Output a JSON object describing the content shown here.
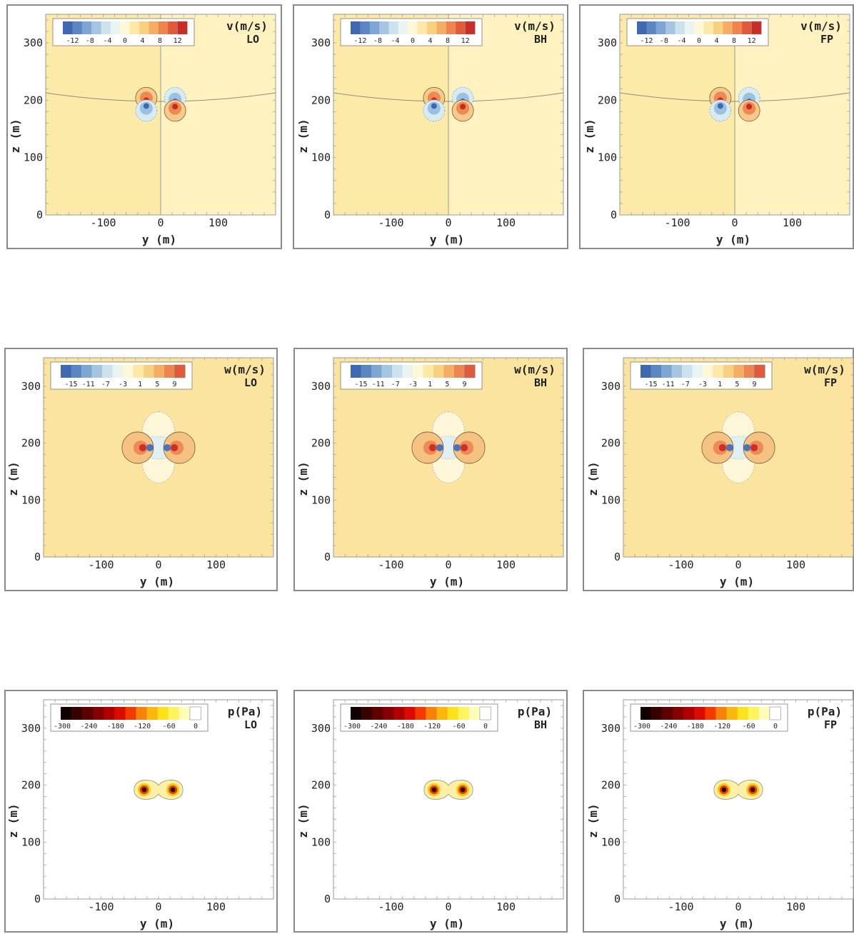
{
  "shared": {
    "y_ticks": [
      "-100",
      "0",
      "100"
    ],
    "z_ticks": [
      "0",
      "100",
      "200",
      "300"
    ],
    "xlabel": "y (m)",
    "ylabel": "z (m)"
  },
  "chart_data": [
    {
      "type": "heatmap",
      "field": "v",
      "var_label": "v(m/s)",
      "model": "LO",
      "xlabel": "y (m)",
      "ylabel": "z (m)",
      "xlim": [
        -200,
        200
      ],
      "ylim": [
        0,
        350
      ],
      "colorbar_ticks": [
        "-12",
        "-8",
        "-4",
        "0",
        "4",
        "8",
        "12"
      ],
      "colorbar_colors": [
        "#3f68b0",
        "#5a86c2",
        "#7ea5d3",
        "#a6c5e2",
        "#cde2ef",
        "#eaf4f3",
        "#fff8d8",
        "#fde8a6",
        "#f9cf82",
        "#f5ad65",
        "#ee8551",
        "#e25a3c",
        "#c92d28"
      ],
      "background": "#fbeaa8",
      "interface_z": 190
    },
    {
      "type": "heatmap",
      "field": "v",
      "var_label": "v(m/s)",
      "model": "BH",
      "xlabel": "y (m)",
      "ylabel": "z (m)",
      "xlim": [
        -200,
        200
      ],
      "ylim": [
        0,
        350
      ],
      "colorbar_ticks": [
        "-12",
        "-8",
        "-4",
        "0",
        "4",
        "8",
        "12"
      ],
      "colorbar_colors": [
        "#3f68b0",
        "#5a86c2",
        "#7ea5d3",
        "#a6c5e2",
        "#cde2ef",
        "#eaf4f3",
        "#fff8d8",
        "#fde8a6",
        "#f9cf82",
        "#f5ad65",
        "#ee8551",
        "#e25a3c",
        "#c92d28"
      ],
      "background": "#fbeaa8",
      "interface_z": 190
    },
    {
      "type": "heatmap",
      "field": "v",
      "var_label": "v(m/s)",
      "model": "FP",
      "xlabel": "y (m)",
      "ylabel": "z (m)",
      "xlim": [
        -200,
        200
      ],
      "ylim": [
        0,
        350
      ],
      "colorbar_ticks": [
        "-12",
        "-8",
        "-4",
        "0",
        "4",
        "8",
        "12"
      ],
      "colorbar_colors": [
        "#3f68b0",
        "#5a86c2",
        "#7ea5d3",
        "#a6c5e2",
        "#cde2ef",
        "#eaf4f3",
        "#fff8d8",
        "#fde8a6",
        "#f9cf82",
        "#f5ad65",
        "#ee8551",
        "#e25a3c",
        "#c92d28"
      ],
      "background": "#fbeaa8",
      "interface_z": 190
    },
    {
      "type": "heatmap",
      "field": "w",
      "var_label": "w(m/s)",
      "model": "LO",
      "xlabel": "y (m)",
      "ylabel": "z (m)",
      "xlim": [
        -200,
        200
      ],
      "ylim": [
        0,
        350
      ],
      "colorbar_ticks": [
        "-15",
        "-11",
        "-7",
        "-3",
        "1",
        "5",
        "9"
      ],
      "colorbar_colors": [
        "#3f68b0",
        "#5a86c2",
        "#7ea5d3",
        "#a6c5e2",
        "#cde2ef",
        "#eaf4f3",
        "#fff8d8",
        "#fde8a6",
        "#f9cf82",
        "#f5ad65",
        "#ee8551",
        "#e25a3c"
      ],
      "background": "#fbe4a0"
    },
    {
      "type": "heatmap",
      "field": "w",
      "var_label": "w(m/s)",
      "model": "BH",
      "xlabel": "y (m)",
      "ylabel": "z (m)",
      "xlim": [
        -200,
        200
      ],
      "ylim": [
        0,
        350
      ],
      "colorbar_ticks": [
        "-15",
        "-11",
        "-7",
        "-3",
        "1",
        "5",
        "9"
      ],
      "colorbar_colors": [
        "#3f68b0",
        "#5a86c2",
        "#7ea5d3",
        "#a6c5e2",
        "#cde2ef",
        "#eaf4f3",
        "#fff8d8",
        "#fde8a6",
        "#f9cf82",
        "#f5ad65",
        "#ee8551",
        "#e25a3c"
      ],
      "background": "#fbe4a0"
    },
    {
      "type": "heatmap",
      "field": "w",
      "var_label": "w(m/s)",
      "model": "FP",
      "xlabel": "y (m)",
      "ylabel": "z (m)",
      "xlim": [
        -200,
        200
      ],
      "ylim": [
        0,
        350
      ],
      "colorbar_ticks": [
        "-15",
        "-11",
        "-7",
        "-3",
        "1",
        "5",
        "9"
      ],
      "colorbar_colors": [
        "#3f68b0",
        "#5a86c2",
        "#7ea5d3",
        "#a6c5e2",
        "#cde2ef",
        "#eaf4f3",
        "#fff8d8",
        "#fde8a6",
        "#f9cf82",
        "#f5ad65",
        "#ee8551",
        "#e25a3c"
      ],
      "background": "#fbe4a0"
    },
    {
      "type": "heatmap",
      "field": "p",
      "var_label": "p(Pa)",
      "model": "LO",
      "xlabel": "y (m)",
      "ylabel": "z (m)",
      "xlim": [
        -200,
        200
      ],
      "ylim": [
        0,
        350
      ],
      "colorbar_ticks": [
        "-300",
        "-240",
        "-180",
        "-120",
        "-60",
        "0"
      ],
      "colorbar_colors": [
        "#120000",
        "#3a0000",
        "#5e0000",
        "#850000",
        "#b00000",
        "#dc0a00",
        "#f53a00",
        "#f7820a",
        "#fbb80c",
        "#fde21a",
        "#fff45e",
        "#fffbb8",
        "#ffffff"
      ],
      "background": "#ffffff"
    },
    {
      "type": "heatmap",
      "field": "p",
      "var_label": "p(Pa)",
      "model": "BH",
      "xlabel": "y (m)",
      "ylabel": "z (m)",
      "xlim": [
        -200,
        200
      ],
      "ylim": [
        0,
        350
      ],
      "colorbar_ticks": [
        "-300",
        "-240",
        "-180",
        "-120",
        "-60",
        "0"
      ],
      "colorbar_colors": [
        "#120000",
        "#3a0000",
        "#5e0000",
        "#850000",
        "#b00000",
        "#dc0a00",
        "#f53a00",
        "#f7820a",
        "#fbb80c",
        "#fde21a",
        "#fff45e",
        "#fffbb8",
        "#ffffff"
      ],
      "background": "#ffffff"
    },
    {
      "type": "heatmap",
      "field": "p",
      "var_label": "p(Pa)",
      "model": "FP",
      "xlabel": "y (m)",
      "ylabel": "z (m)",
      "xlim": [
        -200,
        200
      ],
      "ylim": [
        0,
        350
      ],
      "colorbar_ticks": [
        "-300",
        "-240",
        "-180",
        "-120",
        "-60",
        "0"
      ],
      "colorbar_colors": [
        "#120000",
        "#3a0000",
        "#5e0000",
        "#850000",
        "#b00000",
        "#dc0a00",
        "#f53a00",
        "#f7820a",
        "#fbb80c",
        "#fde21a",
        "#fff45e",
        "#fffbb8",
        "#ffffff"
      ],
      "background": "#ffffff"
    }
  ]
}
